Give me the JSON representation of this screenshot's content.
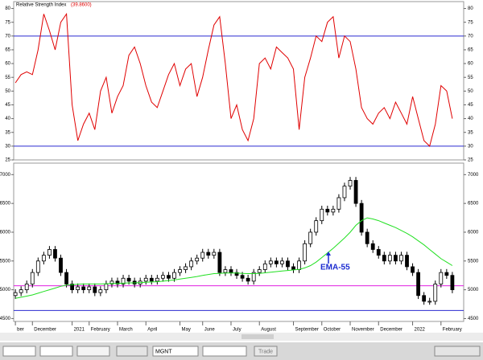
{
  "chart_data": [
    {
      "type": "line",
      "title": "Relative Strength Index",
      "title_value": "(39.8600)",
      "series": [
        {
          "name": "RSI",
          "color": "#e00000",
          "values": [
            53,
            56,
            57,
            56,
            65,
            78,
            72,
            65,
            75,
            78,
            45,
            32,
            38,
            42,
            36,
            50,
            55,
            42,
            48,
            52,
            63,
            66,
            60,
            52,
            46,
            44,
            50,
            56,
            60,
            52,
            58,
            60,
            48,
            55,
            65,
            74,
            77,
            60,
            40,
            45,
            36,
            32,
            40,
            60,
            62,
            58,
            66,
            64,
            62,
            58,
            36,
            55,
            62,
            70,
            68,
            75,
            77,
            62,
            70,
            68,
            58,
            44,
            40,
            38,
            42,
            44,
            40,
            46,
            42,
            38,
            48,
            40,
            32,
            30,
            38,
            52,
            50,
            40
          ]
        }
      ],
      "hlines": [
        {
          "value": 70,
          "color": "#2a2ad0"
        },
        {
          "value": 30,
          "color": "#2a2ad0"
        }
      ],
      "xlim": [
        -0.3,
        79
      ],
      "ylim": [
        25,
        82.5
      ],
      "yticks": [
        25,
        30,
        35,
        40,
        45,
        50,
        55,
        60,
        65,
        70,
        75,
        80
      ]
    },
    {
      "type": "candlestick",
      "open": [
        4900,
        4950,
        5000,
        5100,
        5300,
        5500,
        5600,
        5700,
        5550,
        5300,
        5100,
        5000,
        5050,
        5000,
        5050,
        4950,
        5000,
        5100,
        5150,
        5100,
        5200,
        5150,
        5100,
        5150,
        5200,
        5150,
        5200,
        5250,
        5200,
        5300,
        5350,
        5400,
        5500,
        5550,
        5650,
        5600,
        5650,
        5300,
        5350,
        5300,
        5250,
        5200,
        5150,
        5300,
        5350,
        5450,
        5500,
        5450,
        5500,
        5400,
        5350,
        5500,
        5800,
        6000,
        6200,
        6400,
        6350,
        6400,
        6600,
        6800,
        6900,
        6500,
        6000,
        5800,
        5700,
        5600,
        5500,
        5600,
        5500,
        5600,
        5400,
        5300,
        4900,
        4800,
        4800,
        5100,
        5300,
        5250
      ],
      "high": [
        5010,
        5060,
        5160,
        5360,
        5560,
        5660,
        5760,
        5760,
        5610,
        5360,
        5160,
        5110,
        5110,
        5110,
        5110,
        5060,
        5160,
        5210,
        5210,
        5260,
        5260,
        5210,
        5210,
        5260,
        5260,
        5260,
        5310,
        5310,
        5360,
        5410,
        5460,
        5560,
        5610,
        5710,
        5710,
        5710,
        5710,
        5410,
        5410,
        5360,
        5310,
        5260,
        5360,
        5410,
        5510,
        5560,
        5560,
        5560,
        5560,
        5460,
        5560,
        5860,
        6060,
        6260,
        6460,
        6460,
        6460,
        6660,
        6860,
        6960,
        6960,
        6560,
        6060,
        5860,
        5760,
        5660,
        5660,
        5660,
        5660,
        5660,
        5460,
        5360,
        4960,
        4860,
        5160,
        5360,
        5360,
        5310
      ],
      "low": [
        4840,
        4890,
        4940,
        5040,
        5240,
        5440,
        5540,
        5490,
        5240,
        5040,
        4940,
        4940,
        4940,
        4940,
        4890,
        4890,
        4940,
        5040,
        5040,
        5040,
        5090,
        5040,
        5040,
        5090,
        5090,
        5090,
        5140,
        5140,
        5140,
        5240,
        5290,
        5340,
        5440,
        5490,
        5540,
        5540,
        5240,
        5240,
        5240,
        5190,
        5140,
        5090,
        5090,
        5240,
        5290,
        5390,
        5390,
        5390,
        5340,
        5290,
        5290,
        5440,
        5740,
        5940,
        6140,
        6290,
        6290,
        6340,
        6540,
        6740,
        6440,
        5940,
        5740,
        5640,
        5540,
        5440,
        5440,
        5440,
        5440,
        5340,
        5240,
        4840,
        4740,
        4740,
        4740,
        5040,
        5190,
        4940
      ],
      "close": [
        4950,
        5000,
        5100,
        5300,
        5500,
        5600,
        5700,
        5550,
        5300,
        5100,
        5000,
        5050,
        5000,
        5050,
        4950,
        5000,
        5100,
        5150,
        5100,
        5200,
        5150,
        5100,
        5150,
        5200,
        5150,
        5200,
        5250,
        5200,
        5300,
        5350,
        5400,
        5500,
        5550,
        5650,
        5600,
        5650,
        5300,
        5350,
        5300,
        5250,
        5200,
        5150,
        5300,
        5350,
        5450,
        5500,
        5450,
        5500,
        5400,
        5350,
        5500,
        5800,
        6000,
        6200,
        6400,
        6350,
        6400,
        6600,
        6800,
        6900,
        6500,
        6000,
        5800,
        5700,
        5600,
        5500,
        5600,
        5500,
        5600,
        5400,
        5300,
        4900,
        4800,
        4800,
        5100,
        5300,
        5250,
        5000
      ],
      "color": "#000000",
      "series": [
        {
          "name": "EMA-55",
          "color": "#22e022",
          "values": [
            4850,
            4870,
            4890,
            4910,
            4940,
            4970,
            5000,
            5030,
            5060,
            5080,
            5090,
            5095,
            5100,
            5100,
            5100,
            5100,
            5105,
            5110,
            5110,
            5115,
            5120,
            5120,
            5125,
            5130,
            5135,
            5140,
            5150,
            5160,
            5170,
            5185,
            5200,
            5215,
            5230,
            5250,
            5265,
            5280,
            5285,
            5290,
            5290,
            5290,
            5285,
            5280,
            5280,
            5285,
            5295,
            5305,
            5315,
            5325,
            5335,
            5345,
            5355,
            5380,
            5420,
            5480,
            5560,
            5640,
            5720,
            5810,
            5900,
            6000,
            6120,
            6200,
            6250,
            6230,
            6200,
            6160,
            6120,
            6080,
            6030,
            5980,
            5920,
            5850,
            5780,
            5700,
            5620,
            5540,
            5480,
            5420
          ]
        }
      ],
      "hlines": [
        {
          "value": 5070,
          "color": "#e020e0"
        },
        {
          "value": 4640,
          "color": "#2a2ad0"
        }
      ],
      "annotation": "EMA-55",
      "xlim": [
        -0.3,
        79
      ],
      "ylim": [
        4450,
        7200
      ],
      "yticks": [
        4500,
        5000,
        5500,
        6000,
        6500,
        7000
      ],
      "xticks": [
        {
          "value": 0,
          "label": "ber"
        },
        {
          "value": 3,
          "label": "December"
        },
        {
          "value": 10,
          "label": "2021"
        },
        {
          "value": 13,
          "label": "February"
        },
        {
          "value": 18,
          "label": "March"
        },
        {
          "value": 23,
          "label": "April"
        },
        {
          "value": 29,
          "label": "May"
        },
        {
          "value": 33,
          "label": "June"
        },
        {
          "value": 38,
          "label": "July"
        },
        {
          "value": 43,
          "label": "August"
        },
        {
          "value": 49,
          "label": "September"
        },
        {
          "value": 54,
          "label": "October"
        },
        {
          "value": 59,
          "label": "November"
        },
        {
          "value": 64,
          "label": "December"
        },
        {
          "value": 70,
          "label": "2022"
        },
        {
          "value": 75,
          "label": "February"
        }
      ]
    }
  ],
  "toolbar": {
    "symbol": "MGNT",
    "button": "Trade"
  }
}
